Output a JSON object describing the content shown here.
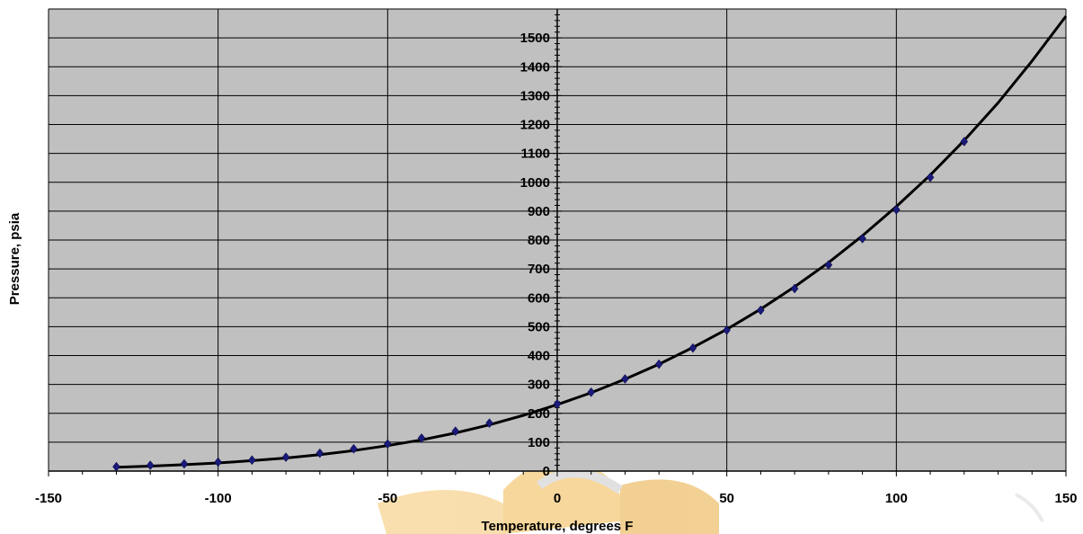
{
  "chart_data": {
    "type": "scatter",
    "title": "",
    "xlabel": "Temperature, degrees F",
    "ylabel": "Pressure, psia",
    "xlim": [
      -150,
      150
    ],
    "ylim": [
      0,
      1600
    ],
    "x_major_step": 50,
    "y_major_step": 100,
    "x_minor_step": 10,
    "y_minor_step": 20,
    "grid": true,
    "plot_background": "#c0c0c0",
    "line_color": "#000000",
    "marker_color": "#1a1a7a",
    "marker_shape": "diamond",
    "x_tick_labels": [
      "-150",
      "-100",
      "-50",
      "0",
      "50",
      "100",
      "150"
    ],
    "y_tick_labels": [
      "0",
      "100",
      "200",
      "300",
      "400",
      "500",
      "600",
      "700",
      "800",
      "900",
      "1000",
      "1100",
      "1200",
      "1300",
      "1400",
      "1500"
    ],
    "series": [
      {
        "x": [
          -130,
          -120,
          -110,
          -100,
          -90,
          -80,
          -70,
          -60,
          -50,
          -40,
          -30,
          -20,
          0,
          10,
          20,
          30,
          40,
          50,
          60,
          70,
          80,
          90,
          100,
          110,
          120
        ],
        "y": [
          15,
          20,
          25,
          31,
          38,
          48,
          62,
          77,
          94,
          114,
          138,
          166,
          232,
          273,
          319,
          370,
          426,
          488,
          557,
          632,
          714,
          805,
          905,
          1017,
          1141
        ]
      }
    ],
    "fit_curve": {
      "model": "exponential",
      "x": [
        -130,
        -120,
        -110,
        -100,
        -90,
        -80,
        -70,
        -60,
        -50,
        -40,
        -30,
        -20,
        -10,
        0,
        10,
        20,
        30,
        40,
        50,
        60,
        70,
        80,
        90,
        100,
        110,
        120,
        130,
        140,
        150
      ],
      "y": [
        13,
        17,
        22,
        28,
        36,
        45,
        57,
        71,
        88,
        108,
        132,
        160,
        193,
        230,
        271,
        318,
        370,
        428,
        491,
        561,
        638,
        722,
        815,
        916,
        1025,
        1145,
        1275,
        1420,
        1575
      ]
    }
  }
}
